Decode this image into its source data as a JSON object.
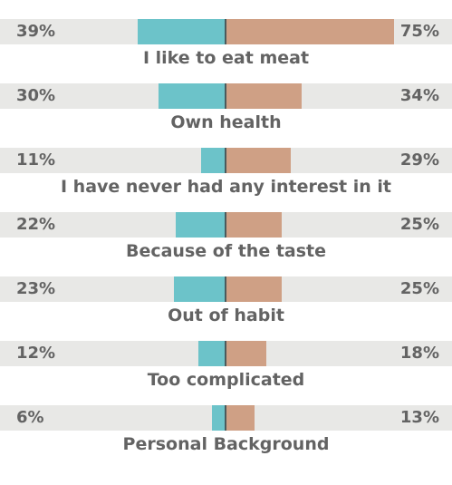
{
  "chart_data": {
    "type": "bar",
    "orientation": "diverging-horizontal",
    "categories": [
      "I like to eat meat",
      "Own health",
      "I have never had any interest in it",
      "Because of the taste",
      "Out of habit",
      "Too complicated",
      "Personal Background"
    ],
    "series": [
      {
        "color": "#6cc3c9",
        "values": [
          39,
          30,
          11,
          22,
          23,
          12,
          6
        ],
        "labels": [
          "39%",
          "30%",
          "11%",
          "22%",
          "23%",
          "12%",
          "6%"
        ]
      },
      {
        "color": "#cfa085",
        "values": [
          75,
          34,
          29,
          25,
          25,
          18,
          13
        ],
        "labels": [
          "75%",
          "34%",
          "29%",
          "25%",
          "25%",
          "18%",
          "13%"
        ]
      }
    ],
    "unit": "%",
    "title": "",
    "xlabel": "",
    "ylabel": "",
    "grid": false,
    "legend": "none"
  }
}
